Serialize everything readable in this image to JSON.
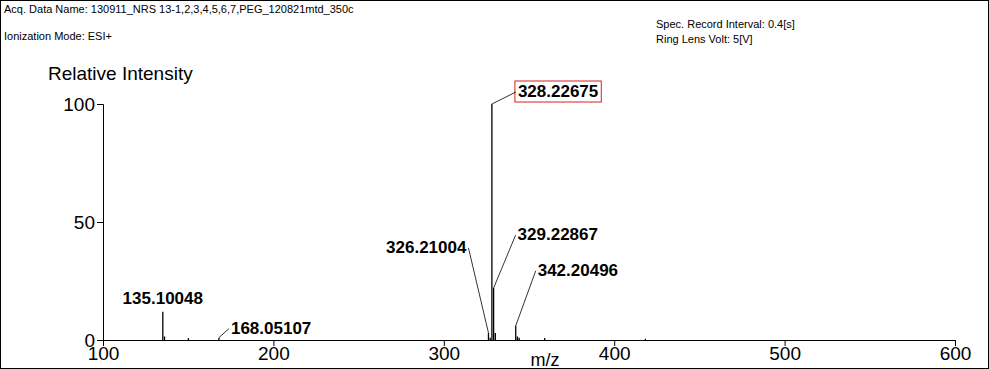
{
  "chart_data": {
    "type": "stick",
    "header": {
      "left": [
        "Acq. Data Name: 130911_NRS 13-1,2,3,4,5,6,7,PEG_120821mtd_350c",
        "Ionization Mode: ESI+"
      ],
      "right": [
        "Spec. Record Interval: 0.4[s]",
        "Ring Lens Volt: 5[V]"
      ]
    },
    "y_label": "Relative Intensity",
    "x_label": "m/z",
    "x": [
      135.10048,
      136.104,
      150.1,
      168.05107,
      326.21004,
      327.21,
      328.22675,
      329.22867,
      330.232,
      342.20496,
      343.208,
      344.21,
      359.2,
      418.3
    ],
    "values": [
      12,
      1.5,
      0.8,
      1,
      3,
      1,
      100,
      22,
      3,
      6,
      1.5,
      1,
      0.8,
      0.5
    ],
    "color": "#000000",
    "xlim": [
      100,
      600
    ],
    "xticks": [
      100,
      200,
      300,
      400,
      500,
      600
    ],
    "ylim": [
      0,
      100
    ],
    "yticks": [
      0,
      50,
      100
    ],
    "grid": false,
    "annotations": [
      {
        "x": 135.10048,
        "text": "135.10048"
      },
      {
        "x": 168.05107,
        "text": "168.05107"
      },
      {
        "x": 326.21004,
        "text": "326.21004"
      },
      {
        "x": 328.22675,
        "text": "328.22675",
        "color": "#d62020"
      },
      {
        "x": 329.22867,
        "text": "329.22867"
      },
      {
        "x": 342.20496,
        "text": "342.20496"
      }
    ]
  }
}
